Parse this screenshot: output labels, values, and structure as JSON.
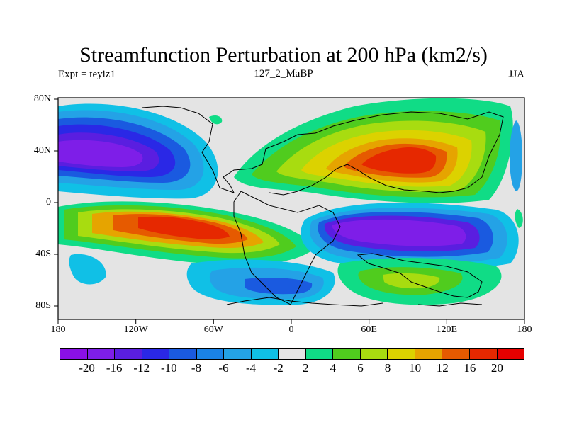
{
  "title": "Streamfunction Perturbation at 200 hPa (km2/s)",
  "left_label": "Expt = teyiz1",
  "center_label": "127_2_MaBP",
  "right_label": "JJA",
  "lat_labels": [
    "80N",
    "40N",
    "0",
    "40S",
    "80S"
  ],
  "lon_labels": [
    "180",
    "120W",
    "60W",
    "0",
    "60E",
    "120E",
    "180"
  ],
  "colorbar": {
    "labels": [
      "-20",
      "-16",
      "-12",
      "-10",
      "-8",
      "-6",
      "-4",
      "-2",
      "2",
      "4",
      "6",
      "8",
      "10",
      "12",
      "16",
      "20"
    ],
    "colors": [
      "#8a10e6",
      "#7e1ee8",
      "#5a1ee0",
      "#2a28e6",
      "#1a5ae0",
      "#1a82e6",
      "#24a2e6",
      "#10c0e6",
      "#e4e4e4",
      "#10dc86",
      "#50cc1e",
      "#a8dc10",
      "#dcd200",
      "#e6a400",
      "#e65a00",
      "#e62800",
      "#e60000"
    ]
  }
}
